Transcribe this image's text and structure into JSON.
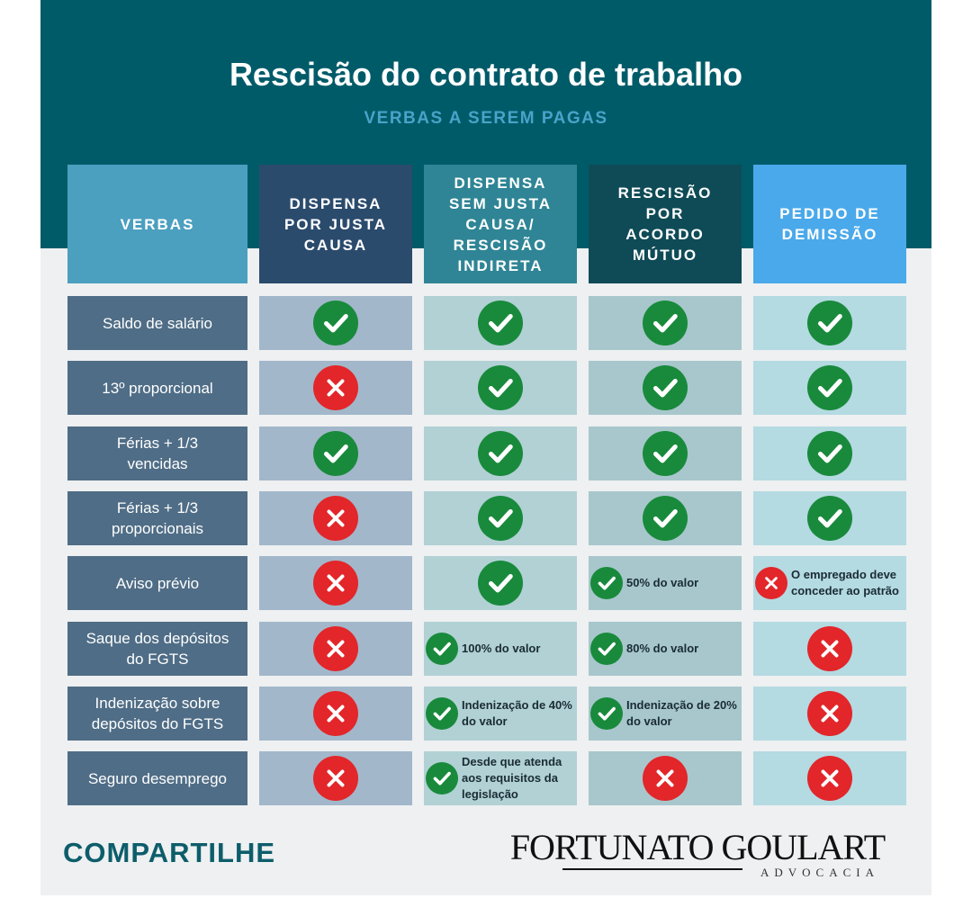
{
  "header": {
    "title": "Rescisão do contrato de trabalho",
    "subtitle": "VERBAS A SEREM PAGAS"
  },
  "table": {
    "columns": [
      "VERBAS",
      "DISPENSA POR JUSTA CAUSA",
      "DISPENSA SEM JUSTA CAUSA/ RESCISÃO INDIRETA",
      "RESCISÃO POR ACORDO MÚTUO",
      "PEDIDO DE DEMISSÃO"
    ],
    "rows": [
      {
        "label": "Saldo de salário",
        "cells": [
          {
            "status": "yes"
          },
          {
            "status": "yes"
          },
          {
            "status": "yes"
          },
          {
            "status": "yes"
          }
        ]
      },
      {
        "label": "13º proporcional",
        "cells": [
          {
            "status": "no"
          },
          {
            "status": "yes"
          },
          {
            "status": "yes"
          },
          {
            "status": "yes"
          }
        ]
      },
      {
        "label": "Férias + 1/3 vencidas",
        "cells": [
          {
            "status": "yes"
          },
          {
            "status": "yes"
          },
          {
            "status": "yes"
          },
          {
            "status": "yes"
          }
        ]
      },
      {
        "label": "Férias + 1/3 proporcionais",
        "cells": [
          {
            "status": "no"
          },
          {
            "status": "yes"
          },
          {
            "status": "yes"
          },
          {
            "status": "yes"
          }
        ]
      },
      {
        "label": "Aviso prévio",
        "cells": [
          {
            "status": "no"
          },
          {
            "status": "yes"
          },
          {
            "status": "yes",
            "note": "50% do valor"
          },
          {
            "status": "no",
            "note": "O empregado deve conceder ao patrão"
          }
        ]
      },
      {
        "label": "Saque dos depósitos do FGTS",
        "cells": [
          {
            "status": "no"
          },
          {
            "status": "yes",
            "note": "100% do valor"
          },
          {
            "status": "yes",
            "note": "80% do valor"
          },
          {
            "status": "no"
          }
        ]
      },
      {
        "label": "Indenização sobre depósitos do FGTS",
        "cells": [
          {
            "status": "no"
          },
          {
            "status": "yes",
            "note": "Indenização de 40% do valor"
          },
          {
            "status": "yes",
            "note": "Indenização de 20% do valor"
          },
          {
            "status": "no"
          }
        ]
      },
      {
        "label": "Seguro desemprego",
        "cells": [
          {
            "status": "no"
          },
          {
            "status": "yes",
            "note": "Desde que atenda aos requisitos da legislação"
          },
          {
            "status": "no"
          },
          {
            "status": "no"
          }
        ]
      }
    ]
  },
  "footer": {
    "share": "COMPARTILHE",
    "logo": "FORTUNATO GOULART",
    "logo_sub": "ADVOCACIA"
  }
}
